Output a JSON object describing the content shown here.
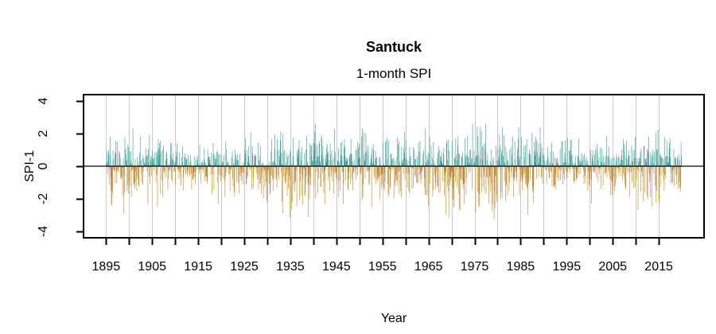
{
  "figure": {
    "title": "Santuck",
    "subtitle": "1-month SPI"
  },
  "chart_data": {
    "type": "bar",
    "title": "Santuck",
    "subtitle": "1-month SPI",
    "xlabel": "Year",
    "ylabel": "SPI-1",
    "legend": "none",
    "x_axis": {
      "label": "Year",
      "labeled_ticks": [
        1895,
        1905,
        1915,
        1925,
        1935,
        1945,
        1955,
        1965,
        1975,
        1985,
        1995,
        2005,
        2015
      ],
      "tick_years": [
        1895,
        1900,
        1905,
        1910,
        1915,
        1920,
        1925,
        1930,
        1935,
        1940,
        1945,
        1950,
        1955,
        1960,
        1965,
        1970,
        1975,
        1980,
        1985,
        1990,
        1995,
        2000,
        2005,
        2010,
        2015
      ],
      "gridlines": "vertical line at every 5-year tick, full plot height",
      "gridline_color": "#C8C8C8"
    },
    "y_axis": {
      "label": "SPI-1",
      "ticks": [
        -4,
        -2,
        0,
        2,
        4
      ],
      "lim": [
        -4.4,
        4.4
      ]
    },
    "series": {
      "name": "1-month SPI monthly values",
      "frequency": "monthly",
      "start_year": 1895,
      "end_year": 2019,
      "n_points": 1500,
      "approx_value_range": [
        -3.9,
        2.6
      ],
      "positive_color": "#3B9A92",
      "negative_color": "#C0882E",
      "zero_line_color": "#000000",
      "synthetic_seed": 18951
    }
  }
}
